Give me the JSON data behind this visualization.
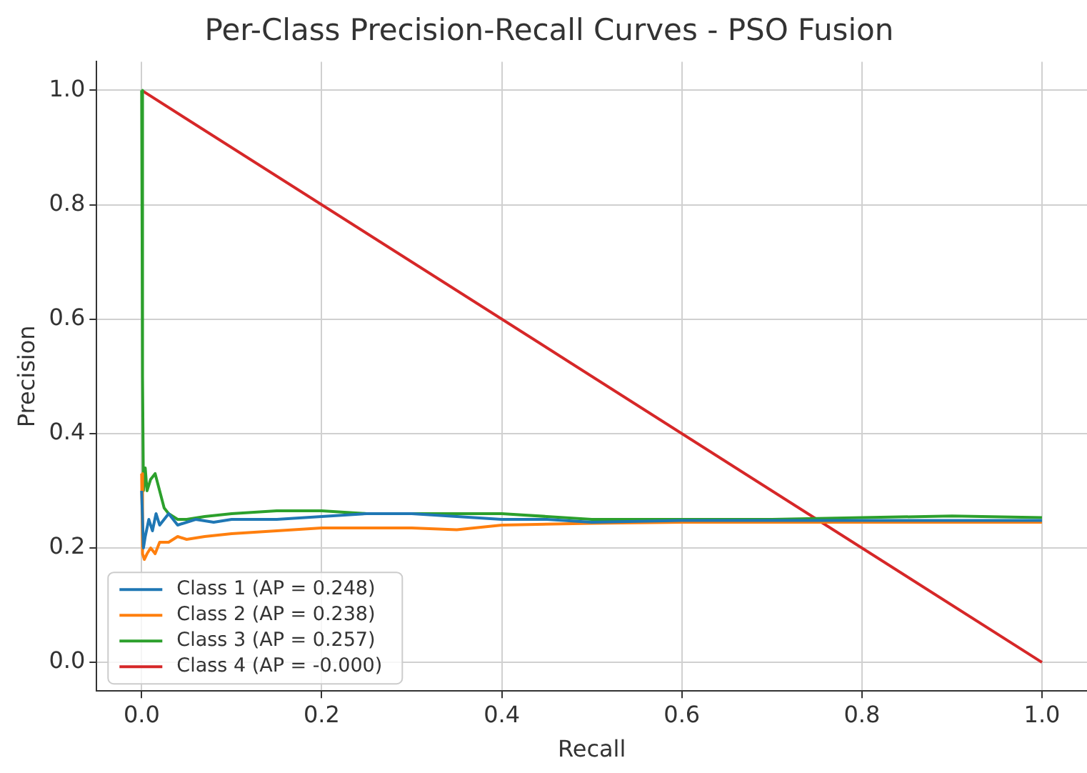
{
  "chart_data": {
    "type": "line",
    "title": "Per-Class Precision-Recall Curves - PSO Fusion",
    "xlabel": "Recall",
    "ylabel": "Precision",
    "xlim": [
      -0.05,
      1.05
    ],
    "ylim": [
      -0.05,
      1.05
    ],
    "xticks": [
      {
        "value": 0,
        "label": "0.0"
      },
      0.2,
      0.4,
      0.6,
      0.8,
      {
        "value": 1,
        "label": "1.0"
      }
    ],
    "yticks": [
      {
        "value": 0,
        "label": "0.0"
      },
      0.2,
      0.4,
      0.6,
      0.8,
      {
        "value": 1,
        "label": "1.0"
      }
    ],
    "grid": true,
    "legend": "bottom left",
    "line_style": "solid",
    "marker": "none",
    "series": [
      {
        "name": "Class 1 (AP = 0.248)",
        "color": "#1f77b4",
        "x": [
          0,
          0.002,
          0.004,
          0.008,
          0.012,
          0.016,
          0.02,
          0.025,
          0.03,
          0.035,
          0.04,
          0.05,
          0.06,
          0.08,
          0.1,
          0.15,
          0.2,
          0.25,
          0.3,
          0.35,
          0.4,
          0.45,
          0.5,
          0.6,
          0.7,
          0.8,
          0.9,
          1.0
        ],
        "values": [
          0.3,
          0.2,
          0.22,
          0.25,
          0.23,
          0.26,
          0.24,
          0.25,
          0.26,
          0.25,
          0.24,
          0.245,
          0.25,
          0.245,
          0.25,
          0.25,
          0.255,
          0.26,
          0.26,
          0.255,
          0.25,
          0.25,
          0.245,
          0.248,
          0.248,
          0.248,
          0.248,
          0.248
        ]
      },
      {
        "name": "Class 2 (AP = 0.238)",
        "color": "#ff7f0e",
        "x": [
          0,
          0.001,
          0.003,
          0.006,
          0.01,
          0.015,
          0.02,
          0.03,
          0.04,
          0.05,
          0.07,
          0.1,
          0.15,
          0.2,
          0.25,
          0.3,
          0.35,
          0.4,
          0.5,
          0.6,
          0.7,
          0.8,
          0.9,
          1.0
        ],
        "values": [
          0.33,
          0.19,
          0.18,
          0.19,
          0.2,
          0.19,
          0.21,
          0.21,
          0.22,
          0.215,
          0.22,
          0.225,
          0.23,
          0.235,
          0.235,
          0.235,
          0.232,
          0.24,
          0.243,
          0.245,
          0.245,
          0.245,
          0.245,
          0.245
        ]
      },
      {
        "name": "Class 3 (AP = 0.257)",
        "color": "#2ca02c",
        "x": [
          0,
          0.001,
          0.002,
          0.004,
          0.006,
          0.01,
          0.015,
          0.02,
          0.025,
          0.03,
          0.04,
          0.05,
          0.07,
          0.1,
          0.15,
          0.2,
          0.25,
          0.3,
          0.35,
          0.4,
          0.45,
          0.5,
          0.6,
          0.7,
          0.8,
          0.9,
          1.0
        ],
        "values": [
          1.0,
          0.5,
          0.3,
          0.34,
          0.3,
          0.32,
          0.33,
          0.3,
          0.27,
          0.26,
          0.25,
          0.25,
          0.255,
          0.26,
          0.265,
          0.265,
          0.26,
          0.26,
          0.26,
          0.26,
          0.255,
          0.25,
          0.25,
          0.25,
          0.253,
          0.256,
          0.253
        ]
      },
      {
        "name": "Class 4 (AP = -0.000)",
        "color": "#d62728",
        "x": [
          0,
          1
        ],
        "values": [
          1,
          0
        ]
      }
    ]
  }
}
